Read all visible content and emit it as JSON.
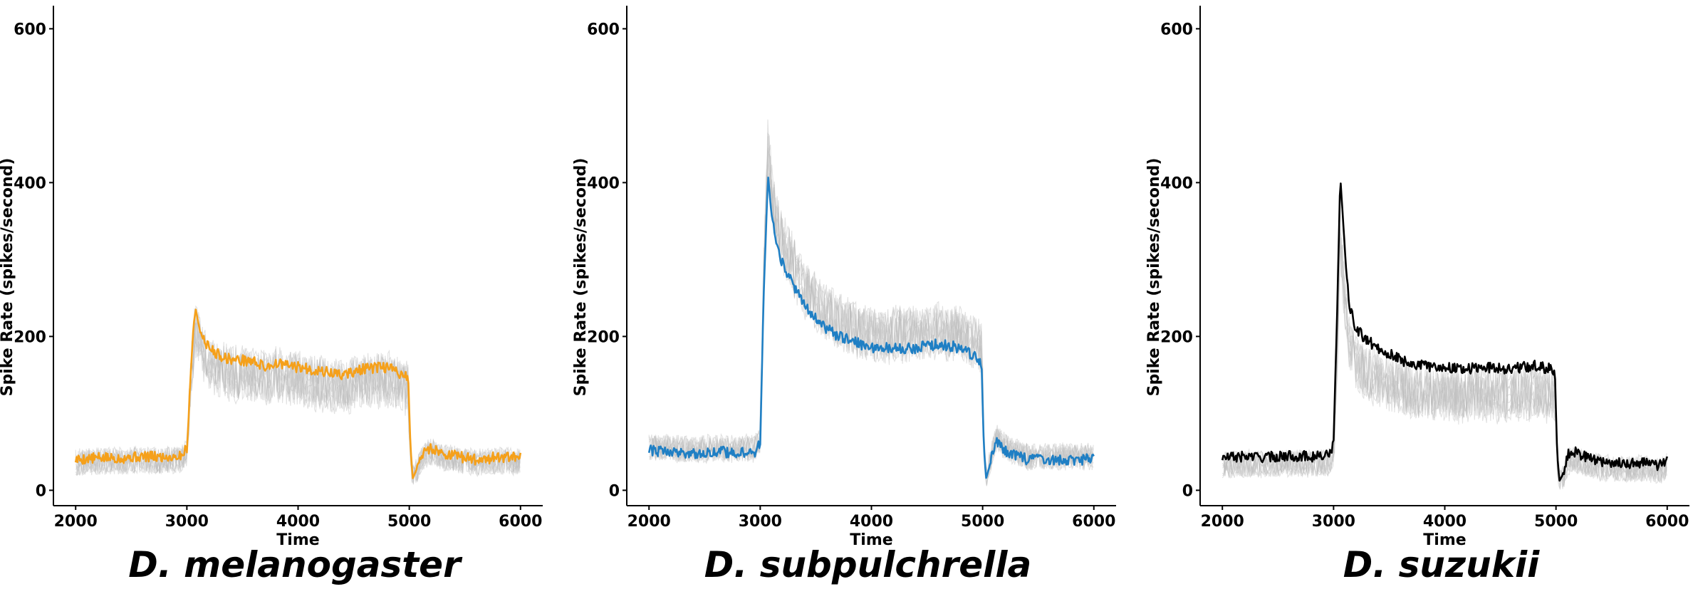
{
  "chart_data": [
    {
      "type": "line",
      "title": "D. melanogaster",
      "xlabel": "Time",
      "ylabel": "Spike Rate (spikes/second)",
      "xlim": [
        1800,
        6200
      ],
      "ylim": [
        -20,
        630
      ],
      "xticks": [
        2000,
        3000,
        4000,
        5000,
        6000
      ],
      "yticks": [
        0,
        200,
        400,
        600
      ],
      "background_traces_color": "#bdbdbd",
      "series": [
        {
          "color": "#f5a01a",
          "points": [
            [
              2000,
              40
            ],
            [
              2200,
              42
            ],
            [
              2400,
              42
            ],
            [
              2600,
              44
            ],
            [
              2800,
              43
            ],
            [
              2950,
              45
            ],
            [
              3000,
              55
            ],
            [
              3030,
              140
            ],
            [
              3060,
              215
            ],
            [
              3080,
              235
            ],
            [
              3120,
              205
            ],
            [
              3200,
              185
            ],
            [
              3300,
              175
            ],
            [
              3400,
              170
            ],
            [
              3600,
              168
            ],
            [
              3700,
              160
            ],
            [
              3800,
              165
            ],
            [
              4000,
              160
            ],
            [
              4200,
              155
            ],
            [
              4400,
              150
            ],
            [
              4600,
              158
            ],
            [
              4800,
              160
            ],
            [
              4950,
              150
            ],
            [
              4990,
              148
            ],
            [
              5010,
              60
            ],
            [
              5030,
              15
            ],
            [
              5060,
              25
            ],
            [
              5100,
              42
            ],
            [
              5150,
              52
            ],
            [
              5200,
              55
            ],
            [
              5300,
              48
            ],
            [
              5400,
              45
            ],
            [
              5600,
              40
            ],
            [
              5800,
              43
            ],
            [
              6000,
              42
            ]
          ]
        }
      ]
    },
    {
      "type": "line",
      "title": "D. subpulchrella",
      "xlabel": "Time",
      "ylabel": "Spike Rate (spikes/second)",
      "xlim": [
        1800,
        6200
      ],
      "ylim": [
        -20,
        630
      ],
      "xticks": [
        2000,
        3000,
        4000,
        5000,
        6000
      ],
      "yticks": [
        0,
        200,
        400,
        600
      ],
      "background_traces_color": "#bdbdbd",
      "series": [
        {
          "color": "#1f7fc4",
          "points": [
            [
              2000,
              52
            ],
            [
              2200,
              50
            ],
            [
              2400,
              48
            ],
            [
              2600,
              50
            ],
            [
              2800,
              49
            ],
            [
              2950,
              50
            ],
            [
              3000,
              60
            ],
            [
              3030,
              250
            ],
            [
              3070,
              410
            ],
            [
              3100,
              360
            ],
            [
              3150,
              320
            ],
            [
              3200,
              295
            ],
            [
              3300,
              265
            ],
            [
              3400,
              240
            ],
            [
              3500,
              225
            ],
            [
              3600,
              210
            ],
            [
              3700,
              200
            ],
            [
              3800,
              195
            ],
            [
              4000,
              185
            ],
            [
              4200,
              185
            ],
            [
              4400,
              185
            ],
            [
              4600,
              190
            ],
            [
              4800,
              185
            ],
            [
              4950,
              172
            ],
            [
              4990,
              168
            ],
            [
              5010,
              60
            ],
            [
              5030,
              15
            ],
            [
              5060,
              30
            ],
            [
              5100,
              55
            ],
            [
              5130,
              62
            ],
            [
              5200,
              52
            ],
            [
              5300,
              45
            ],
            [
              5400,
              40
            ],
            [
              5600,
              40
            ],
            [
              5800,
              40
            ],
            [
              6000,
              40
            ]
          ]
        }
      ]
    },
    {
      "type": "line",
      "title": "D. suzukii",
      "xlabel": "Time",
      "ylabel": "Spike Rate (spikes/second)",
      "xlim": [
        1800,
        6200
      ],
      "ylim": [
        -20,
        630
      ],
      "xticks": [
        2000,
        3000,
        4000,
        5000,
        6000
      ],
      "yticks": [
        0,
        200,
        400,
        600
      ],
      "background_traces_color": "#bdbdbd",
      "series": [
        {
          "color": "#000000",
          "points": [
            [
              2000,
              42
            ],
            [
              2200,
              44
            ],
            [
              2400,
              43
            ],
            [
              2600,
              45
            ],
            [
              2800,
              44
            ],
            [
              2950,
              45
            ],
            [
              3000,
              60
            ],
            [
              3030,
              220
            ],
            [
              3060,
              408
            ],
            [
              3090,
              340
            ],
            [
              3120,
              270
            ],
            [
              3150,
              235
            ],
            [
              3200,
              210
            ],
            [
              3300,
              195
            ],
            [
              3400,
              185
            ],
            [
              3600,
              170
            ],
            [
              3700,
              165
            ],
            [
              3800,
              162
            ],
            [
              4000,
              160
            ],
            [
              4200,
              158
            ],
            [
              4400,
              160
            ],
            [
              4600,
              158
            ],
            [
              4800,
              162
            ],
            [
              4950,
              158
            ],
            [
              4990,
              155
            ],
            [
              5010,
              50
            ],
            [
              5030,
              12
            ],
            [
              5060,
              20
            ],
            [
              5100,
              45
            ],
            [
              5150,
              52
            ],
            [
              5200,
              48
            ],
            [
              5300,
              42
            ],
            [
              5400,
              38
            ],
            [
              5600,
              35
            ],
            [
              5800,
              36
            ],
            [
              5950,
              32
            ],
            [
              6000,
              42
            ]
          ]
        }
      ]
    }
  ]
}
